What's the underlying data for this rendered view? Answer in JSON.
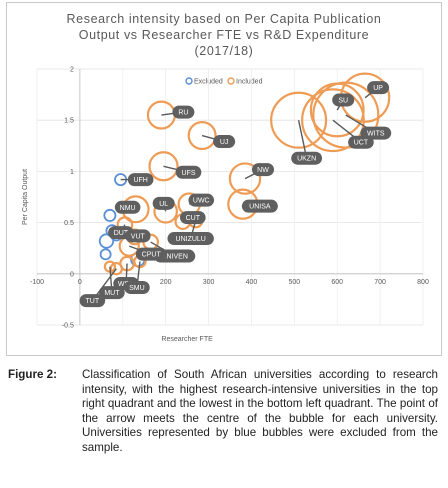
{
  "chart_data": {
    "type": "bubble",
    "title_lines": [
      "Research intensity based on Per Capita Publication",
      "Output vs Researcher FTE vs R&D Expenditure",
      "(2017/18)"
    ],
    "xlabel": "Researcher FTE",
    "ylabel": "Per Capita Output",
    "xlim": [
      -100,
      800
    ],
    "ylim": [
      -0.5,
      2
    ],
    "x_ticks": [
      -100,
      0,
      100,
      200,
      300,
      400,
      500,
      600,
      700,
      800
    ],
    "y_ticks": [
      -0.5,
      0,
      0.5,
      1,
      1.5,
      2
    ],
    "legend_position": "top-center",
    "series": [
      {
        "name": "Excluded",
        "color": "#5b8fd6",
        "points": [
          {
            "label": "UFH",
            "x": 95,
            "y": 0.92,
            "size": 1
          },
          {
            "label": "",
            "x": 70,
            "y": 0.57,
            "size": 1
          },
          {
            "label": "",
            "x": 75,
            "y": 0.42,
            "size": 1
          },
          {
            "label": "",
            "x": 85,
            "y": 0.38,
            "size": 1
          },
          {
            "label": "",
            "x": 62,
            "y": 0.32,
            "size": 1.2
          },
          {
            "label": "",
            "x": 60,
            "y": 0.19,
            "size": 0.9
          },
          {
            "label": "",
            "x": 135,
            "y": 0.14,
            "size": 1.2
          }
        ]
      },
      {
        "name": "Included",
        "color": "#ee9c55",
        "points": [
          {
            "label": "RU",
            "x": 190,
            "y": 1.55,
            "size": 2.4
          },
          {
            "label": "UJ",
            "x": 285,
            "y": 1.35,
            "size": 2.4
          },
          {
            "label": "UFS",
            "x": 195,
            "y": 1.05,
            "size": 2.5
          },
          {
            "label": "NMU",
            "x": 130,
            "y": 0.63,
            "size": 2.3
          },
          {
            "label": "UL",
            "x": 200,
            "y": 0.61,
            "size": 2
          },
          {
            "label": "UWC",
            "x": 255,
            "y": 0.68,
            "size": 1.9
          },
          {
            "label": "CUT",
            "x": 240,
            "y": 0.51,
            "size": 1.3
          },
          {
            "label": "DUT",
            "x": 105,
            "y": 0.48,
            "size": 1.3
          },
          {
            "label": "VUT",
            "x": 128,
            "y": 0.36,
            "size": 1.3
          },
          {
            "label": "CPUT",
            "x": 115,
            "y": 0.27,
            "size": 1.7
          },
          {
            "label": "UNIVEN",
            "x": 165,
            "y": 0.31,
            "size": 1.3
          },
          {
            "label": "MUT",
            "x": 70,
            "y": 0.07,
            "size": 0.9
          },
          {
            "label": "WSU",
            "x": 110,
            "y": 0.1,
            "size": 1.2
          },
          {
            "label": "SMU",
            "x": 140,
            "y": 0.12,
            "size": 1
          },
          {
            "label": "TUT",
            "x": 85,
            "y": 0.05,
            "size": 1
          },
          {
            "label": "UNIZULU",
            "x": 270,
            "y": 0.52,
            "size": 1.2
          },
          {
            "label": "NW",
            "x": 385,
            "y": 0.93,
            "size": 2.7
          },
          {
            "label": "UNISA",
            "x": 380,
            "y": 0.68,
            "size": 2.6
          },
          {
            "label": "UKZN",
            "x": 510,
            "y": 1.5,
            "size": 4.9
          },
          {
            "label": "UCT",
            "x": 590,
            "y": 1.5,
            "size": 5.5
          },
          {
            "label": "WITS",
            "x": 620,
            "y": 1.55,
            "size": 5.8
          },
          {
            "label": "SU",
            "x": 600,
            "y": 1.6,
            "size": 4.7
          },
          {
            "label": "UP",
            "x": 665,
            "y": 1.72,
            "size": 4.3
          }
        ]
      }
    ],
    "callouts": [
      {
        "label": "RU",
        "series": 1,
        "index": 0
      },
      {
        "label": "UJ",
        "series": 1,
        "index": 1
      },
      {
        "label": "UFH",
        "series": 0,
        "index": 0
      },
      {
        "label": "UFS",
        "series": 1,
        "index": 2
      },
      {
        "label": "NMU",
        "series": 1,
        "index": 3
      },
      {
        "label": "UL",
        "series": 1,
        "index": 4
      },
      {
        "label": "UWC",
        "series": 1,
        "index": 5
      },
      {
        "label": "CUT",
        "series": 1,
        "index": 6
      },
      {
        "label": "DUT",
        "series": 1,
        "index": 7
      },
      {
        "label": "VUT",
        "series": 1,
        "index": 8
      },
      {
        "label": "UNIVEN",
        "series": 1,
        "index": 10
      },
      {
        "label": "CPUT",
        "series": 1,
        "index": 9
      },
      {
        "label": "MUT",
        "series": 1,
        "index": 11
      },
      {
        "label": "WSU",
        "series": 1,
        "index": 12
      },
      {
        "label": "SMU",
        "series": 1,
        "index": 13
      },
      {
        "label": "TUT",
        "series": 1,
        "index": 14
      },
      {
        "label": "UNIZULU",
        "series": 1,
        "index": 15
      },
      {
        "label": "NW",
        "series": 1,
        "index": 16
      },
      {
        "label": "UNISA",
        "series": 1,
        "index": 17
      },
      {
        "label": "UKZN",
        "series": 1,
        "index": 18
      },
      {
        "label": "UCT",
        "series": 1,
        "index": 19
      },
      {
        "label": "WITS",
        "series": 1,
        "index": 20
      },
      {
        "label": "SU",
        "series": 1,
        "index": 21
      },
      {
        "label": "UP",
        "series": 1,
        "index": 22
      }
    ]
  },
  "caption": {
    "label": "Figure 2:",
    "text": "Classification of South African universities according to research intensity, with the highest research-intensive universities in the top right quadrant and the lowest in the bottom left quadrant. The point of the arrow meets the centre of the bubble for each university. Universities represented by blue bubbles were excluded from the sample."
  }
}
